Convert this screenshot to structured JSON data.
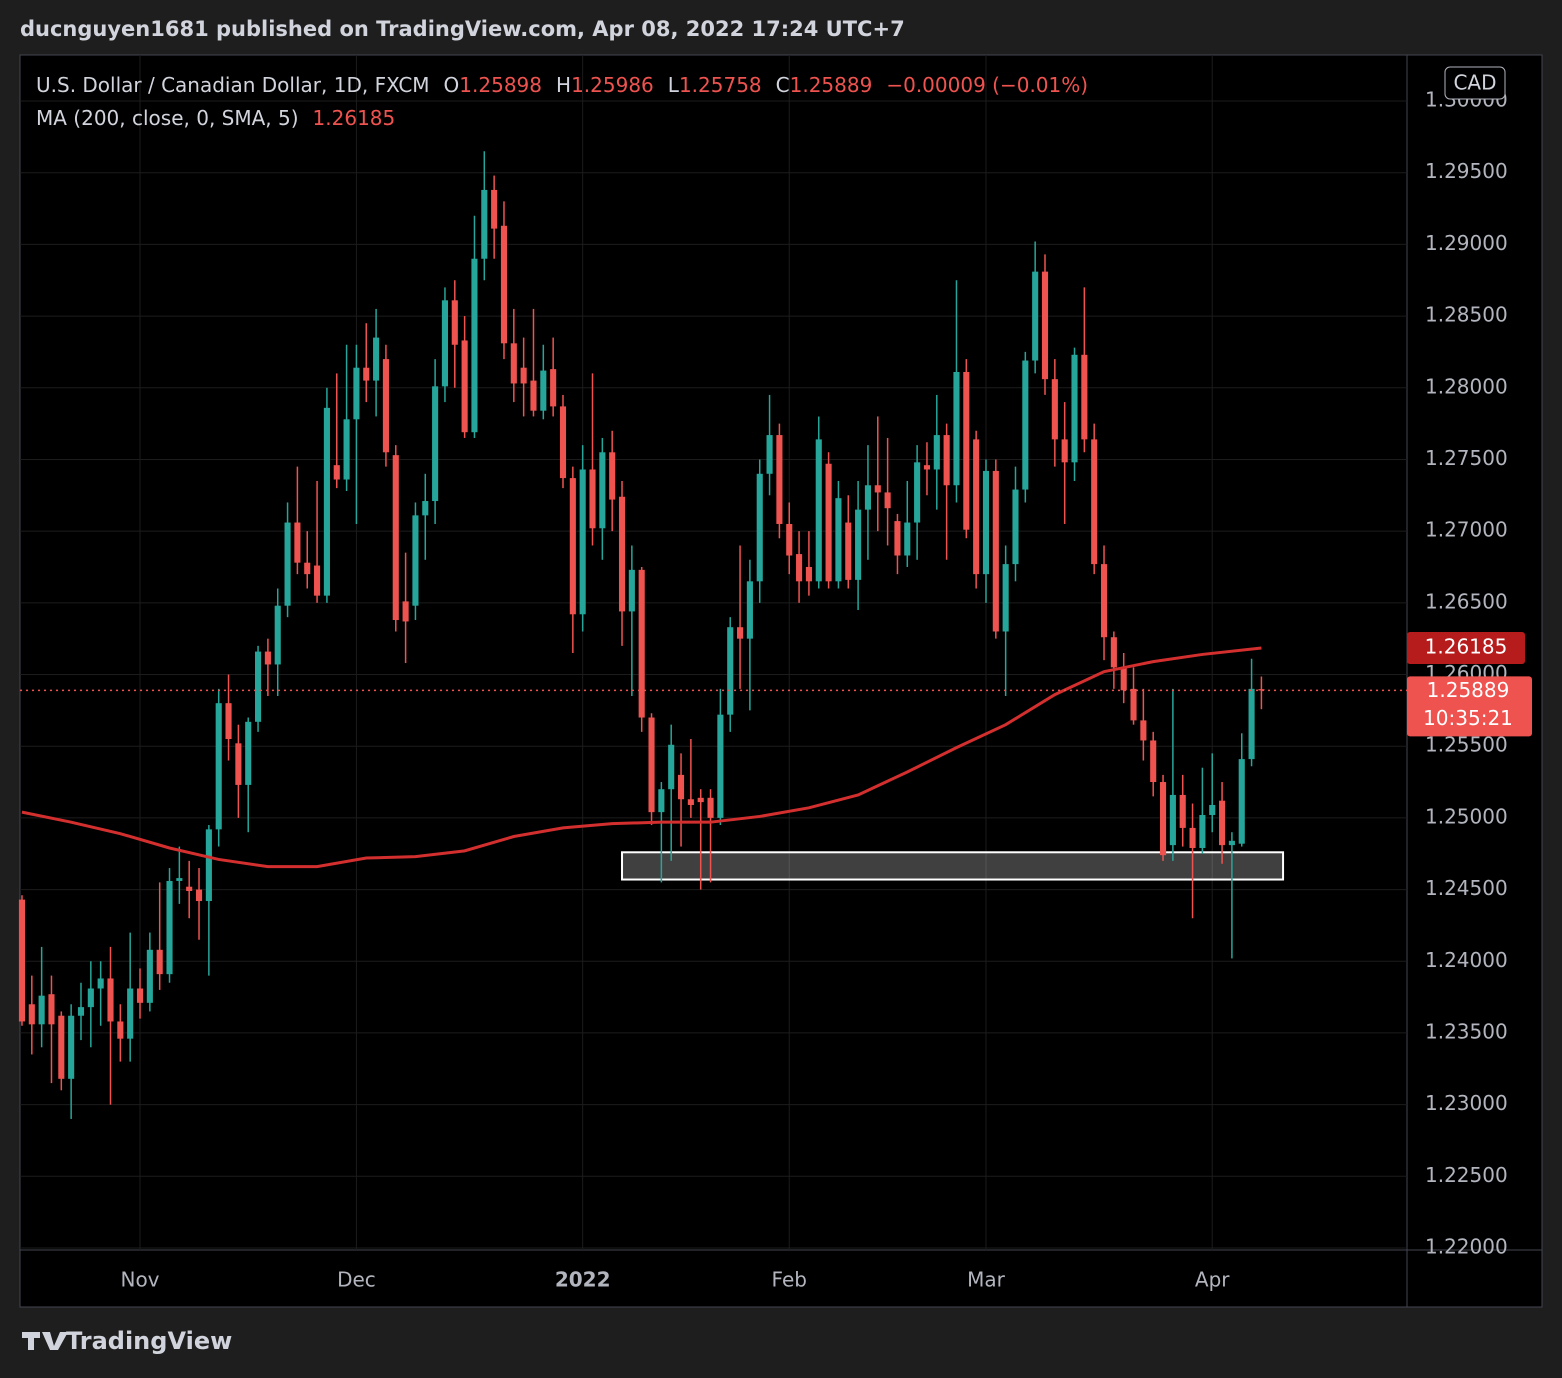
{
  "chart_data": {
    "type": "candlestick",
    "published": "ducnguyen1681 published on TradingView.com, Apr 08, 2022 17:24 UTC+7",
    "title": "U.S. Dollar / Canadian Dollar, 1D, FXCM",
    "ohlc_keys": [
      "O",
      "H",
      "L",
      "C"
    ],
    "change": "−0.00009 (−0.01%)",
    "currency": "CAD",
    "countdown": "10:35:21",
    "brand": "TradingView",
    "up_color": "#26a69a",
    "down_color": "#ef5350",
    "grid": true,
    "xlim": [
      -0.2,
      140.8
    ],
    "ylim": [
      1.21986,
      1.30321
    ],
    "xticks": [
      {
        "value": 12,
        "label": "Nov"
      },
      {
        "value": 34,
        "label": "Dec"
      },
      {
        "value": 57,
        "label": "2022"
      },
      {
        "value": 78,
        "label": "Feb"
      },
      {
        "value": 98,
        "label": "Mar"
      },
      {
        "value": 121,
        "label": "Apr"
      }
    ],
    "yticks": [
      {
        "value": 1.3,
        "label": "1.30000"
      },
      {
        "value": 1.295,
        "label": "1.29500"
      },
      {
        "value": 1.29,
        "label": "1.29000"
      },
      {
        "value": 1.285,
        "label": "1.28500"
      },
      {
        "value": 1.28,
        "label": "1.28000"
      },
      {
        "value": 1.275,
        "label": "1.27500"
      },
      {
        "value": 1.27,
        "label": "1.27000"
      },
      {
        "value": 1.265,
        "label": "1.26500"
      },
      {
        "value": 1.26,
        "label": "1.26000"
      },
      {
        "value": 1.255,
        "label": "1.25500"
      },
      {
        "value": 1.25,
        "label": "1.25000"
      },
      {
        "value": 1.245,
        "label": "1.24500"
      },
      {
        "value": 1.24,
        "label": "1.24000"
      },
      {
        "value": 1.235,
        "label": "1.23500"
      },
      {
        "value": 1.23,
        "label": "1.23000"
      },
      {
        "value": 1.225,
        "label": "1.22500"
      },
      {
        "value": 1.22,
        "label": "1.22000"
      }
    ],
    "open": [
      1.2443,
      1.237,
      1.2356,
      1.2377,
      1.2362,
      1.2318,
      1.2362,
      1.2368,
      1.2381,
      1.2388,
      1.2358,
      1.2346,
      1.2381,
      1.2371,
      1.2408,
      1.2391,
      1.2456,
      1.2452,
      1.245,
      1.2442,
      1.2492,
      1.258,
      1.2552,
      1.2523,
      1.2567,
      1.2616,
      1.2607,
      1.2648,
      1.2706,
      1.2678,
      1.2676,
      1.2655,
      1.2746,
      1.2736,
      1.2778,
      1.2814,
      1.2805,
      1.282,
      1.2753,
      1.2651,
      1.2648,
      1.2711,
      1.2721,
      1.2801,
      1.2861,
      1.2833,
      1.2769,
      1.289,
      1.2938,
      1.2913,
      1.2831,
      1.2814,
      1.2805,
      1.2784,
      1.2813,
      1.2787,
      1.2737,
      1.2642,
      1.2743,
      1.2702,
      1.2755,
      1.2724,
      1.2644,
      1.2673,
      1.257,
      1.2504,
      1.252,
      1.253,
      1.2513,
      1.2514,
      1.2514,
      1.25,
      1.2572,
      1.2633,
      1.2625,
      1.2665,
      1.274,
      1.2767,
      1.2705,
      1.2684,
      1.2675,
      1.2665,
      1.2747,
      1.2665,
      1.2706,
      1.2666,
      1.2715,
      1.2732,
      1.2727,
      1.2707,
      1.2683,
      1.2706,
      1.2746,
      1.2743,
      1.2767,
      1.2732,
      1.2811,
      1.2764,
      1.267,
      1.2742,
      1.263,
      1.2677,
      1.2729,
      1.2819,
      1.2881,
      1.2806,
      1.2764,
      1.2748,
      1.2823,
      1.2764,
      1.2677,
      1.2626,
      1.2605,
      1.259,
      1.2568,
      1.2554,
      1.2525,
      1.2481,
      1.2516,
      1.2493,
      1.2479,
      1.2502,
      1.2512,
      1.2481,
      1.2482,
      1.2541,
      1.25898
    ],
    "high": [
      1.2446,
      1.239,
      1.241,
      1.239,
      1.2365,
      1.237,
      1.2385,
      1.24,
      1.24,
      1.241,
      1.237,
      1.242,
      1.2395,
      1.242,
      1.2455,
      1.2465,
      1.248,
      1.247,
      1.2465,
      1.2495,
      1.259,
      1.26,
      1.2565,
      1.257,
      1.262,
      1.2625,
      1.266,
      1.272,
      1.2745,
      1.27,
      1.2735,
      1.28,
      1.281,
      1.283,
      1.283,
      1.2845,
      1.2855,
      1.283,
      1.276,
      1.2685,
      1.272,
      1.274,
      1.282,
      1.287,
      1.2875,
      1.285,
      1.292,
      1.2965,
      1.2948,
      1.293,
      1.2855,
      1.2835,
      1.2855,
      1.283,
      1.2835,
      1.2795,
      1.2745,
      1.276,
      1.281,
      1.2765,
      1.277,
      1.2735,
      1.269,
      1.2675,
      1.2573,
      1.2525,
      1.2565,
      1.2545,
      1.2555,
      1.252,
      1.252,
      1.259,
      1.264,
      1.269,
      1.268,
      1.275,
      1.2795,
      1.2775,
      1.272,
      1.27,
      1.27,
      1.278,
      1.2755,
      1.2735,
      1.2725,
      1.2735,
      1.276,
      1.278,
      1.2765,
      1.2712,
      1.2735,
      1.276,
      1.2762,
      1.2795,
      1.2775,
      1.2875,
      1.282,
      1.277,
      1.275,
      1.275,
      1.269,
      1.2745,
      1.2825,
      1.2902,
      1.2893,
      1.282,
      1.279,
      1.2828,
      1.287,
      1.2775,
      1.269,
      1.263,
      1.2615,
      1.2605,
      1.259,
      1.256,
      1.253,
      1.259,
      1.253,
      1.251,
      1.2535,
      1.2545,
      1.2525,
      1.249,
      1.2559,
      1.2611,
      1.25986
    ],
    "low": [
      1.2355,
      1.2335,
      1.234,
      1.2315,
      1.231,
      1.229,
      1.2345,
      1.234,
      1.2355,
      1.23,
      1.233,
      1.233,
      1.236,
      1.2365,
      1.238,
      1.2385,
      1.244,
      1.243,
      1.2415,
      1.239,
      1.248,
      1.254,
      1.25,
      1.249,
      1.256,
      1.2585,
      1.2585,
      1.264,
      1.267,
      1.266,
      1.265,
      1.265,
      1.273,
      1.2728,
      1.2705,
      1.279,
      1.278,
      1.2745,
      1.263,
      1.2608,
      1.2638,
      1.268,
      1.2705,
      1.279,
      1.28,
      1.2765,
      1.2765,
      1.2875,
      1.289,
      1.282,
      1.279,
      1.278,
      1.278,
      1.2778,
      1.278,
      1.273,
      1.2615,
      1.263,
      1.269,
      1.268,
      1.27,
      1.262,
      1.2585,
      1.256,
      1.2495,
      1.2455,
      1.247,
      1.248,
      1.25,
      1.245,
      1.2455,
      1.2495,
      1.256,
      1.259,
      1.2575,
      1.265,
      1.2725,
      1.2695,
      1.267,
      1.265,
      1.2655,
      1.266,
      1.266,
      1.266,
      1.266,
      1.2645,
      1.268,
      1.27,
      1.269,
      1.267,
      1.2675,
      1.268,
      1.2725,
      1.2715,
      1.268,
      1.272,
      1.2695,
      1.266,
      1.265,
      1.2625,
      1.2585,
      1.2665,
      1.272,
      1.281,
      1.2795,
      1.2745,
      1.2705,
      1.2735,
      1.2755,
      1.267,
      1.261,
      1.259,
      1.258,
      1.2565,
      1.254,
      1.2515,
      1.247,
      1.247,
      1.248,
      1.243,
      1.2475,
      1.249,
      1.2468,
      1.2402,
      1.248,
      1.2536,
      1.25758
    ],
    "close": [
      1.2358,
      1.2356,
      1.2376,
      1.2356,
      1.2318,
      1.2362,
      1.2368,
      1.2381,
      1.2388,
      1.2358,
      1.2346,
      1.2381,
      1.2371,
      1.2408,
      1.2391,
      1.2456,
      1.2458,
      1.2449,
      1.2442,
      1.2492,
      1.258,
      1.2555,
      1.2523,
      1.2567,
      1.2616,
      1.2607,
      1.2648,
      1.2706,
      1.2678,
      1.267,
      1.2655,
      1.2786,
      1.2736,
      1.2778,
      1.2814,
      1.2805,
      1.2835,
      1.2755,
      1.2638,
      1.2637,
      1.2711,
      1.2721,
      1.2801,
      1.2861,
      1.283,
      1.2769,
      1.289,
      1.2938,
      1.2911,
      1.2831,
      1.2803,
      1.2803,
      1.2784,
      1.2812,
      1.2787,
      1.2737,
      1.2642,
      1.2743,
      1.2702,
      1.2755,
      1.2722,
      1.2644,
      1.2673,
      1.257,
      1.2504,
      1.252,
      1.2551,
      1.2513,
      1.2509,
      1.2511,
      1.25,
      1.2572,
      1.2633,
      1.2625,
      1.2665,
      1.274,
      1.2767,
      1.2705,
      1.2683,
      1.2665,
      1.2665,
      1.2764,
      1.2665,
      1.2723,
      1.2666,
      1.2715,
      1.2732,
      1.2727,
      1.2716,
      1.2683,
      1.2706,
      1.2748,
      1.2743,
      1.2767,
      1.2732,
      1.2811,
      1.2701,
      1.267,
      1.2742,
      1.263,
      1.2677,
      1.2729,
      1.2819,
      1.2881,
      1.2806,
      1.2764,
      1.2748,
      1.2823,
      1.2764,
      1.2677,
      1.2626,
      1.2605,
      1.2589,
      1.2568,
      1.2554,
      1.2525,
      1.2474,
      1.2516,
      1.2493,
      1.2479,
      1.2502,
      1.2509,
      1.2481,
      1.2484,
      1.2541,
      1.259,
      1.25889
    ],
    "ma": {
      "label": "MA (200, close, 0, SMA, 5)",
      "color": "#d32f2f",
      "x": [
        0,
        5,
        10,
        15,
        20,
        25,
        30,
        35,
        40,
        45,
        50,
        55,
        60,
        65,
        70,
        75,
        80,
        85,
        90,
        95,
        100,
        105,
        110,
        115,
        120,
        126
      ],
      "values": [
        1.2504,
        1.2497,
        1.2489,
        1.2479,
        1.2471,
        1.2466,
        1.2466,
        1.2472,
        1.2473,
        1.2477,
        1.2487,
        1.2493,
        1.2496,
        1.2497,
        1.2497,
        1.2501,
        1.2507,
        1.2516,
        1.2532,
        1.2549,
        1.2565,
        1.2586,
        1.2602,
        1.2609,
        1.2614,
        1.26185
      ]
    },
    "zone": {
      "x": [
        61,
        128.2
      ],
      "y": [
        1.2457,
        1.2476
      ]
    }
  }
}
